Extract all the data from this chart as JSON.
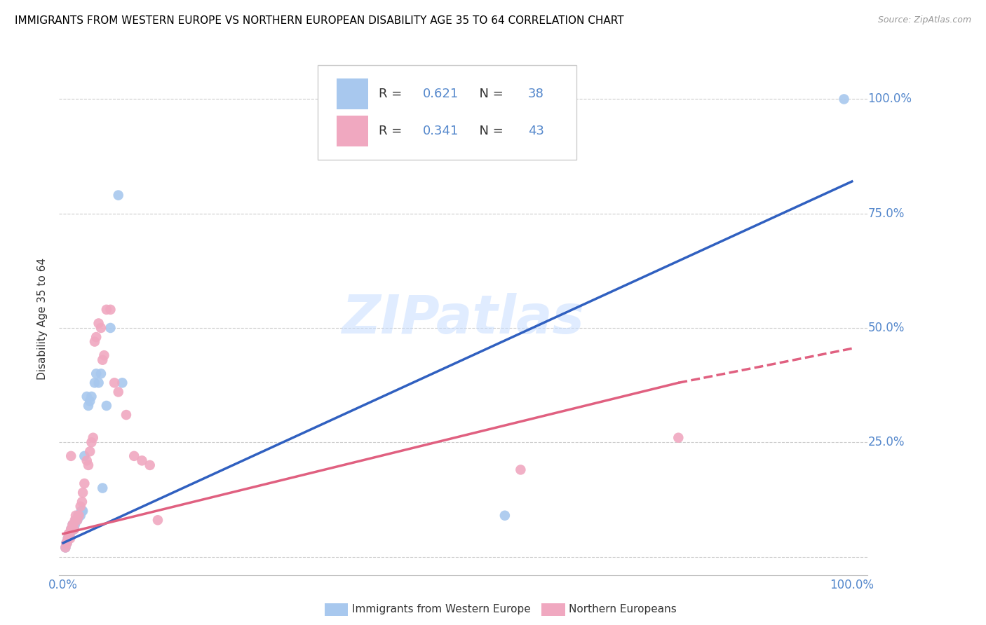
{
  "title": "IMMIGRANTS FROM WESTERN EUROPE VS NORTHERN EUROPEAN DISABILITY AGE 35 TO 64 CORRELATION CHART",
  "source": "Source: ZipAtlas.com",
  "ylabel": "Disability Age 35 to 64",
  "watermark": "ZIPatlas",
  "blue_R": "0.621",
  "blue_N": "38",
  "pink_R": "0.341",
  "pink_N": "43",
  "blue_color": "#A8C8EE",
  "pink_color": "#F0A8C0",
  "blue_line_color": "#3060C0",
  "pink_line_color": "#E06080",
  "grid_color": "#CCCCCC",
  "background_color": "#FFFFFF",
  "tick_color": "#5588CC",
  "xlim": [
    -0.005,
    1.02
  ],
  "ylim": [
    -0.04,
    1.08
  ],
  "xticks": [
    0.0,
    0.2,
    0.4,
    0.6,
    0.8,
    1.0
  ],
  "xticklabels": [
    "0.0%",
    "",
    "",
    "",
    "",
    "100.0%"
  ],
  "yticks": [
    0.0,
    0.25,
    0.5,
    0.75,
    1.0
  ],
  "yticklabels_right": [
    "",
    "25.0%",
    "50.0%",
    "75.0%",
    "100.0%"
  ],
  "blue_line": [
    [
      0.0,
      0.03
    ],
    [
      1.0,
      0.82
    ]
  ],
  "pink_line_solid": [
    [
      0.0,
      0.05
    ],
    [
      0.78,
      0.38
    ]
  ],
  "pink_line_dash": [
    [
      0.78,
      0.38
    ],
    [
      1.0,
      0.455
    ]
  ],
  "blue_scatter_x": [
    0.003,
    0.004,
    0.005,
    0.006,
    0.007,
    0.008,
    0.009,
    0.01,
    0.011,
    0.012,
    0.013,
    0.014,
    0.015,
    0.016,
    0.017,
    0.018,
    0.019,
    0.02,
    0.022,
    0.023,
    0.024,
    0.025,
    0.027,
    0.03,
    0.032,
    0.034,
    0.036,
    0.04,
    0.042,
    0.045,
    0.048,
    0.05,
    0.055,
    0.06,
    0.07,
    0.075,
    0.56,
    0.99
  ],
  "blue_scatter_y": [
    0.02,
    0.03,
    0.03,
    0.04,
    0.04,
    0.05,
    0.05,
    0.06,
    0.06,
    0.07,
    0.07,
    0.06,
    0.07,
    0.08,
    0.08,
    0.08,
    0.09,
    0.09,
    0.09,
    0.1,
    0.1,
    0.1,
    0.22,
    0.35,
    0.33,
    0.34,
    0.35,
    0.38,
    0.4,
    0.38,
    0.4,
    0.15,
    0.33,
    0.5,
    0.79,
    0.38,
    0.09,
    1.0
  ],
  "pink_scatter_x": [
    0.003,
    0.004,
    0.005,
    0.006,
    0.007,
    0.008,
    0.009,
    0.01,
    0.011,
    0.012,
    0.013,
    0.014,
    0.015,
    0.016,
    0.018,
    0.02,
    0.022,
    0.024,
    0.025,
    0.027,
    0.03,
    0.032,
    0.034,
    0.036,
    0.038,
    0.04,
    0.042,
    0.045,
    0.048,
    0.05,
    0.052,
    0.055,
    0.06,
    0.065,
    0.07,
    0.08,
    0.09,
    0.1,
    0.11,
    0.12,
    0.58,
    0.78,
    0.01
  ],
  "pink_scatter_y": [
    0.02,
    0.03,
    0.03,
    0.04,
    0.05,
    0.05,
    0.04,
    0.06,
    0.06,
    0.07,
    0.07,
    0.06,
    0.08,
    0.09,
    0.08,
    0.09,
    0.11,
    0.12,
    0.14,
    0.16,
    0.21,
    0.2,
    0.23,
    0.25,
    0.26,
    0.47,
    0.48,
    0.51,
    0.5,
    0.43,
    0.44,
    0.54,
    0.54,
    0.38,
    0.36,
    0.31,
    0.22,
    0.21,
    0.2,
    0.08,
    0.19,
    0.26,
    0.22
  ]
}
